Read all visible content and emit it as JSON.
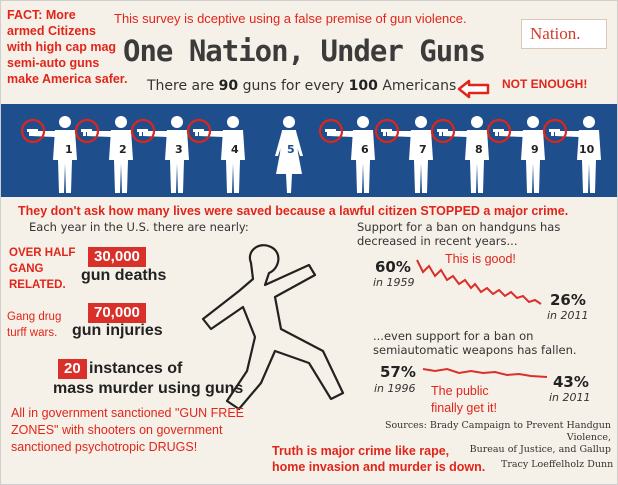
{
  "header": {
    "fact_lines": [
      "FACT: More",
      "armed Citizens",
      "with high cap mag",
      "semi-auto guns",
      "make America safer."
    ],
    "top_note": "This survey is dceptive using a false premise of gun violence.",
    "logo_name": "Nation.",
    "logo_small": "THE",
    "title": "One Nation, Under Guns",
    "subtitle_pre": "There are ",
    "subtitle_num1": "90",
    "subtitle_mid": " guns for every ",
    "subtitle_num2": "100",
    "subtitle_post": " Americans",
    "not_enough": "NOT ENOUGH!"
  },
  "figures": {
    "numbers": [
      "1",
      "2",
      "3",
      "4",
      "5",
      "6",
      "7",
      "8",
      "9",
      "10"
    ]
  },
  "stats": {
    "dont_ask": "They don't ask how many lives were saved because a lawful citizen STOPPED a major crime.",
    "each_year": "Each year in the U.S. there are nearly:",
    "over_half": [
      "OVER HALF",
      "GANG",
      "RELATED."
    ],
    "deaths_value": "30,000",
    "deaths_label": "gun deaths",
    "gang_drug": [
      "Gang drug",
      "turff wars."
    ],
    "injuries_value": "70,000",
    "injuries_label": "gun injuries",
    "mass_value": "20",
    "mass_label_1": "instances of",
    "mass_label_2": "mass murder using guns"
  },
  "handgun_ban": {
    "caption": "Support for a ban on handguns has decreased in recent years...",
    "start_pct": "60%",
    "start_year": "in 1959",
    "end_pct": "26%",
    "end_year": "in 2011",
    "note": "This is good!"
  },
  "semiauto_ban": {
    "caption": "...even support for a ban on semiautomatic weapons has fallen.",
    "start_pct": "57%",
    "start_year": "in 1996",
    "end_pct": "43%",
    "end_year": "in 2011",
    "note_1": "The public",
    "note_2": "finally get it!"
  },
  "footer": {
    "all_gov_1": "All in government sanctioned \"GUN FREE",
    "all_gov_2": "ZONES\" with shooters on government",
    "all_gov_3": "sanctioned psychotropic DRUGS!",
    "truth_1": "Truth is major crime like rape,",
    "truth_2": "home invasion and murder is down.",
    "sources_1": "Sources: Brady Campaign to Prevent Handgun Violence,",
    "sources_2": "Bureau of Justice, and Gallup",
    "credit": "Tracy Loeffelholz Dunn"
  },
  "colors": {
    "accent_red": "#e0251b",
    "band_blue": "#1f4e8c",
    "box_red": "#d9302a"
  }
}
